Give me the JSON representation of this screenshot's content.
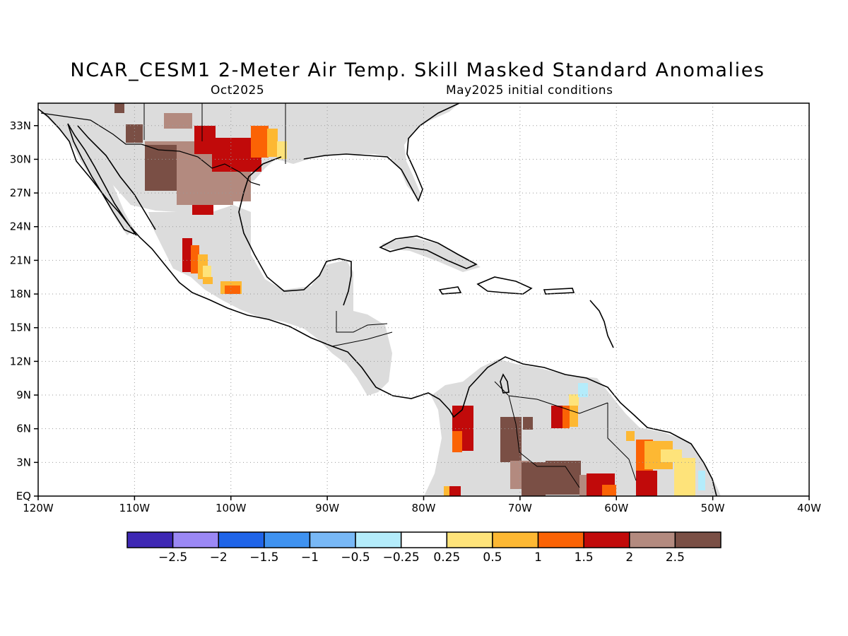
{
  "header": {
    "title": "NCAR_CESM1 2-Meter Air Temp. Skill Masked Standard Anomalies",
    "target_month": "Oct2025",
    "initial_conditions": "May2025 initial conditions"
  },
  "axes": {
    "lon_range": [
      -120,
      -40
    ],
    "lat_range": [
      0,
      35
    ],
    "lon_ticks": [
      {
        "v": -120,
        "label": "120W"
      },
      {
        "v": -110,
        "label": "110W"
      },
      {
        "v": -100,
        "label": "100W"
      },
      {
        "v": -90,
        "label": "90W"
      },
      {
        "v": -80,
        "label": "80W"
      },
      {
        "v": -70,
        "label": "70W"
      },
      {
        "v": -60,
        "label": "60W"
      },
      {
        "v": -50,
        "label": "50W"
      },
      {
        "v": -40,
        "label": "40W"
      }
    ],
    "lat_ticks": [
      {
        "v": 0,
        "label": "EQ"
      },
      {
        "v": 3,
        "label": "3N"
      },
      {
        "v": 6,
        "label": "6N"
      },
      {
        "v": 9,
        "label": "9N"
      },
      {
        "v": 12,
        "label": "12N"
      },
      {
        "v": 15,
        "label": "15N"
      },
      {
        "v": 18,
        "label": "18N"
      },
      {
        "v": 21,
        "label": "21N"
      },
      {
        "v": 24,
        "label": "24N"
      },
      {
        "v": 27,
        "label": "27N"
      },
      {
        "v": 30,
        "label": "30N"
      },
      {
        "v": 33,
        "label": "33N"
      }
    ],
    "grid": "dotted"
  },
  "colorbar": {
    "colors": [
      "#3e28b4",
      "#9b88f5",
      "#1f64e8",
      "#3f92f0",
      "#78b8f6",
      "#b4ecfb",
      "#ffffff",
      "#fee37a",
      "#fdb833",
      "#fb6305",
      "#c10a0a",
      "#b38a7f",
      "#7a4f45"
    ],
    "labels": [
      "-2.5",
      "-2",
      "-1.5",
      "-1",
      "-0.5",
      "-0.25",
      "0.25",
      "0.5",
      "1",
      "1.5",
      "2",
      "2.5"
    ]
  },
  "colors": {
    "masked_land": "#dcdcdc",
    "coastline": "#000000"
  }
}
